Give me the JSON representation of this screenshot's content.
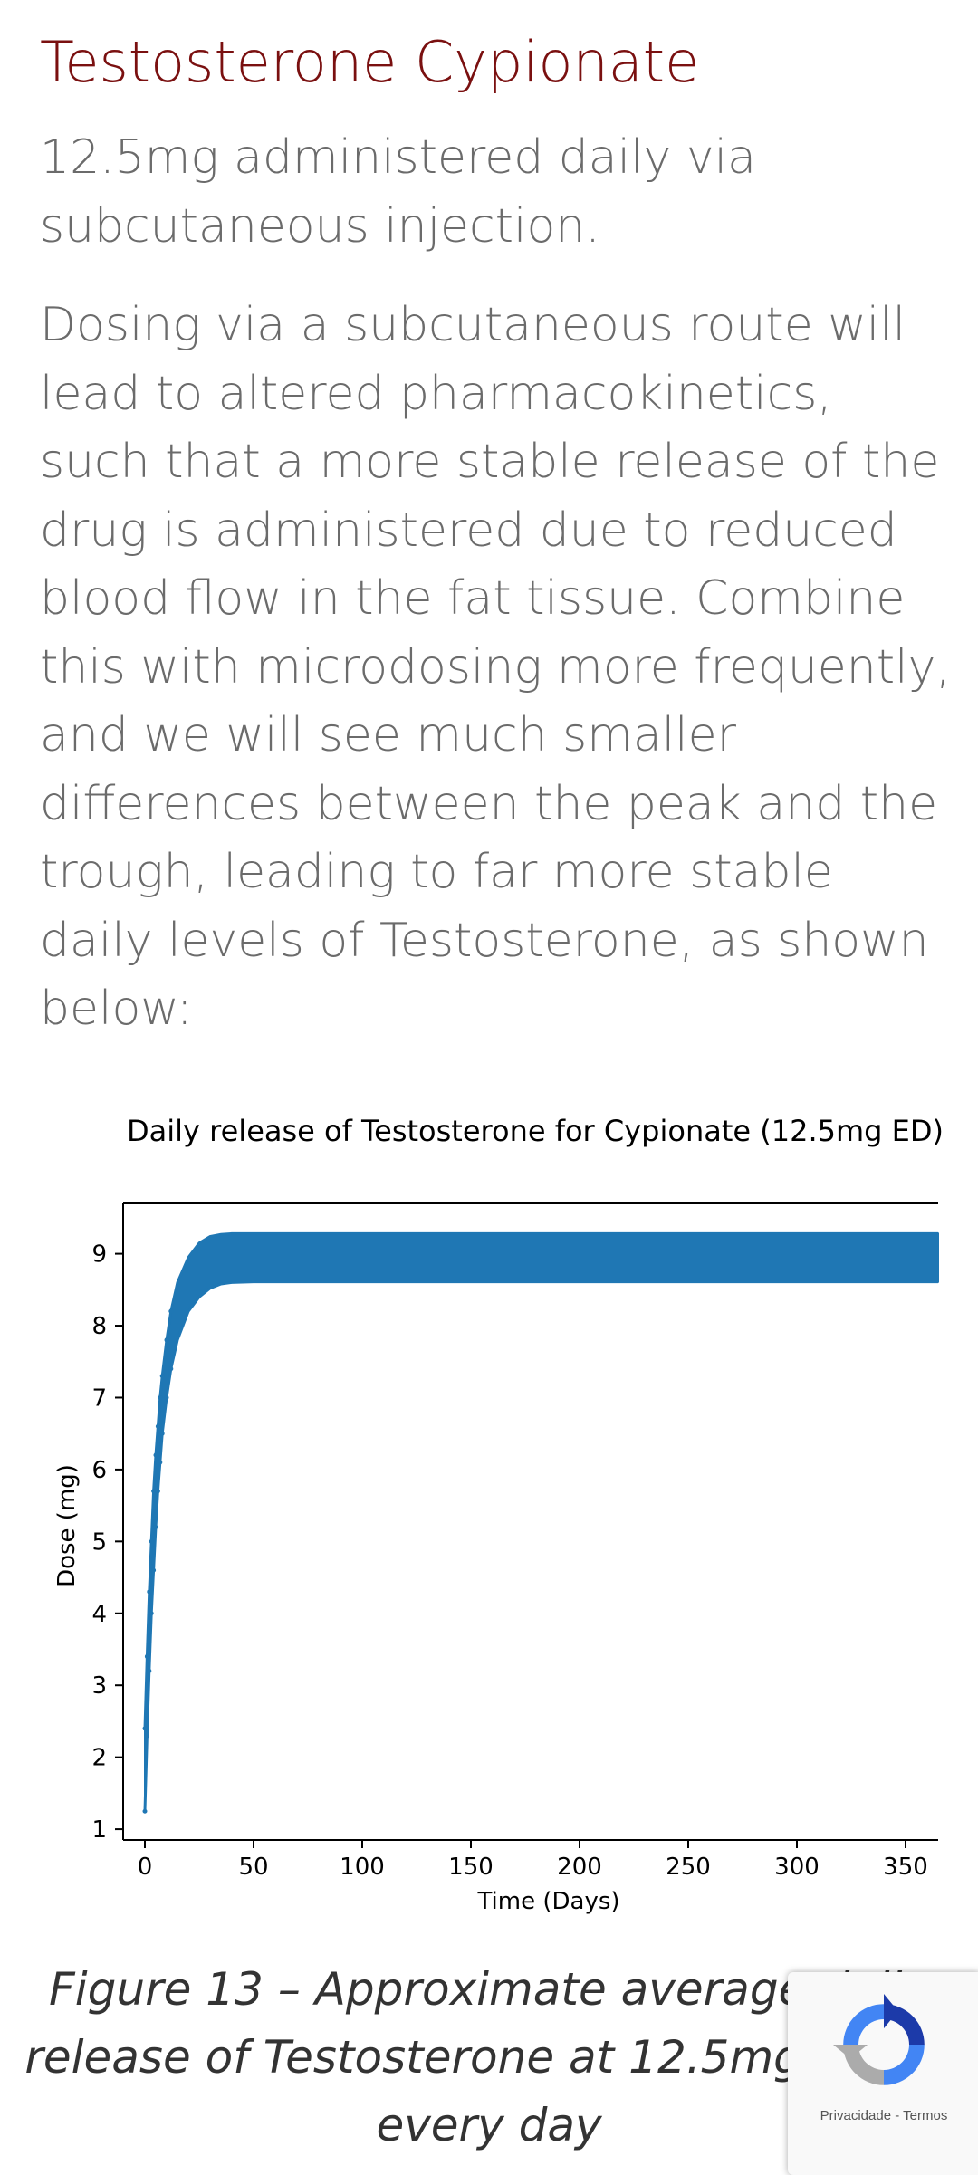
{
  "article": {
    "heading": "Testosterone Cypionate",
    "subtitle": "12.5mg administered daily via subcutaneous injection.",
    "paragraph": "Dosing via a subcutaneous route will lead to altered pharmacokinetics, such that a more stable release of the drug is administered due to reduced blood flow in the fat tissue. Combine this with microdosing more frequently, and we will see much smaller differences between the peak and the trough, leading to far more stable daily levels of Testosterone, as shown below:",
    "caption": "Figure 13 – Approximate average daily release of Testosterone at 12.5mg dosed every day"
  },
  "colors": {
    "heading": "#7a1010",
    "body_text": "#6b6b6b",
    "series": "#1f77b4"
  },
  "chart_data": {
    "type": "line",
    "title": "Daily release of Testosterone for Cypionate (12.5mg ED)",
    "xlabel": "Time (Days)",
    "ylabel": "Dose (mg)",
    "xlim": [
      -10,
      365
    ],
    "ylim": [
      0.85,
      9.7
    ],
    "xticks": [
      0,
      50,
      100,
      150,
      200,
      250,
      300,
      350
    ],
    "yticks": [
      1,
      2,
      3,
      4,
      5,
      6,
      7,
      8,
      9
    ],
    "grid": false,
    "series": [
      {
        "name": "",
        "x": [
          0,
          1,
          2,
          3,
          4,
          5,
          6,
          7,
          8,
          10,
          12,
          15,
          20,
          25,
          30,
          35,
          40,
          50,
          100,
          150,
          200,
          250,
          300,
          365
        ],
        "y_peak": [
          2.4,
          3.4,
          4.3,
          5.0,
          5.7,
          6.2,
          6.6,
          7.0,
          7.3,
          7.8,
          8.2,
          8.6,
          8.95,
          9.15,
          9.24,
          9.27,
          9.28,
          9.28,
          9.28,
          9.28,
          9.28,
          9.28,
          9.28,
          9.28
        ],
        "y_trough": [
          1.25,
          2.3,
          3.2,
          4.0,
          4.6,
          5.2,
          5.7,
          6.1,
          6.5,
          7.0,
          7.4,
          7.8,
          8.2,
          8.4,
          8.52,
          8.58,
          8.6,
          8.61,
          8.61,
          8.61,
          8.61,
          8.61,
          8.61,
          8.61
        ]
      }
    ]
  },
  "recaptcha": {
    "privacy": "Privacidade",
    "separator": "-",
    "terms": "Termos"
  }
}
